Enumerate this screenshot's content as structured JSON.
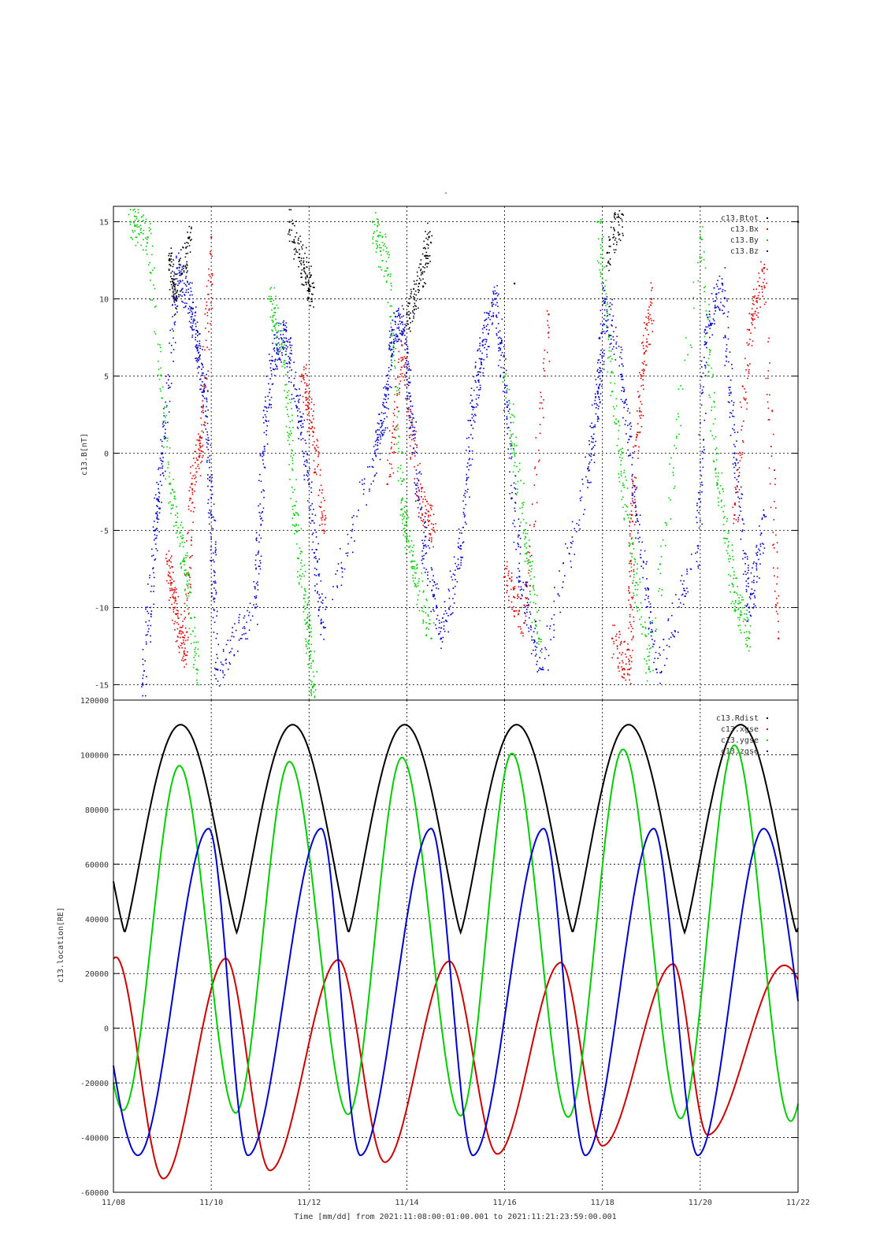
{
  "figure": {
    "top_marker": "-",
    "xlabel": "Time [mm/dd]  from 2021:11:08:00:01:00.001  to  2021:11:21:23:59:00.001",
    "x_ticks": [
      "11/08",
      "11/10",
      "11/12",
      "11/14",
      "11/16",
      "11/18",
      "11/20",
      "11/22"
    ]
  },
  "chart_data": [
    {
      "type": "scatter",
      "title": "",
      "ylabel": "c13.B[nT]",
      "xlim": [
        0,
        14
      ],
      "ylim": [
        -16,
        16
      ],
      "y_ticks": [
        "15",
        "10",
        "5",
        "0",
        "-5",
        "-10",
        "-15"
      ],
      "x_units": "days since 2021-11-08 00:00",
      "legend": {
        "placement": "top-right",
        "entries": [
          "c13.Btot",
          "c13.Bx",
          "c13.By",
          "c13.Bz"
        ]
      },
      "grid": true,
      "series": [
        {
          "name": "c13.Btot",
          "color": "#000000",
          "values": [
            [
              1.15,
              12.5
            ],
            [
              1.25,
              10.0
            ],
            [
              1.55,
              14.0
            ],
            [
              3.6,
              15.0
            ],
            [
              3.9,
              12.0
            ],
            [
              4.05,
              10.0
            ],
            [
              6.0,
              9.0
            ],
            [
              6.25,
              11.0
            ],
            [
              6.45,
              14.0
            ],
            [
              8.2,
              11.0
            ],
            [
              10.1,
              13.0
            ],
            [
              10.4,
              15.5
            ],
            [
              14.0,
              15.0
            ]
          ]
        },
        {
          "name": "c13.Bx",
          "color": "#dd0000",
          "values": [
            [
              1.1,
              -7.0
            ],
            [
              1.25,
              -10.0
            ],
            [
              1.45,
              -13.0
            ],
            [
              1.6,
              -2.0
            ],
            [
              1.8,
              1.0
            ],
            [
              2.0,
              14.0
            ],
            [
              3.85,
              5.0
            ],
            [
              4.05,
              2.0
            ],
            [
              4.3,
              -5.0
            ],
            [
              5.6,
              -2.0
            ],
            [
              5.9,
              7.0
            ],
            [
              6.25,
              -3.0
            ],
            [
              6.55,
              -5.0
            ],
            [
              8.0,
              -8.0
            ],
            [
              8.4,
              -11.0
            ],
            [
              8.9,
              9.0
            ],
            [
              10.2,
              -12.0
            ],
            [
              10.55,
              -14.0
            ],
            [
              10.6,
              -4.0
            ],
            [
              10.8,
              5.0
            ],
            [
              11.0,
              10.0
            ],
            [
              12.7,
              -4.0
            ],
            [
              13.0,
              8.0
            ],
            [
              13.3,
              12.0
            ],
            [
              13.6,
              -12.0
            ]
          ]
        },
        {
          "name": "c13.By",
          "color": "#00cc00",
          "values": [
            [
              0.35,
              15.0
            ],
            [
              0.7,
              14.0
            ],
            [
              1.15,
              -2.0
            ],
            [
              1.45,
              -7.0
            ],
            [
              1.7,
              -14.0
            ],
            [
              3.2,
              10.0
            ],
            [
              3.5,
              6.0
            ],
            [
              3.7,
              -4.0
            ],
            [
              3.95,
              -11.0
            ],
            [
              4.1,
              -15.0
            ],
            [
              5.3,
              15.0
            ],
            [
              5.6,
              12.0
            ],
            [
              5.9,
              -3.0
            ],
            [
              6.1,
              -7.0
            ],
            [
              6.5,
              -12.0
            ],
            [
              8.0,
              5.0
            ],
            [
              8.4,
              -5.0
            ],
            [
              8.7,
              -12.0
            ],
            [
              9.9,
              15.0
            ],
            [
              10.2,
              4.0
            ],
            [
              10.55,
              -6.0
            ],
            [
              10.95,
              -14.0
            ],
            [
              12.0,
              14.0
            ],
            [
              12.35,
              -2.0
            ],
            [
              12.7,
              -9.0
            ],
            [
              13.0,
              -12.0
            ]
          ]
        },
        {
          "name": "c13.Bz",
          "color": "#0000cc",
          "values": [
            [
              0.6,
              -15.0
            ],
            [
              0.85,
              -5.0
            ],
            [
              1.0,
              0.0
            ],
            [
              1.3,
              12.0
            ],
            [
              1.55,
              10.0
            ],
            [
              1.7,
              7.0
            ],
            [
              1.85,
              4.0
            ],
            [
              2.0,
              -4.0
            ],
            [
              2.1,
              -14.0
            ],
            [
              2.9,
              -10.0
            ],
            [
              3.05,
              0.0
            ],
            [
              3.25,
              6.0
            ],
            [
              3.5,
              8.0
            ],
            [
              3.75,
              3.0
            ],
            [
              4.0,
              -2.0
            ],
            [
              4.25,
              -11.0
            ],
            [
              5.35,
              0.0
            ],
            [
              5.55,
              3.0
            ],
            [
              5.7,
              8.0
            ],
            [
              5.9,
              8.5
            ],
            [
              6.1,
              2.0
            ],
            [
              6.35,
              -6.0
            ],
            [
              6.7,
              -12.0
            ],
            [
              7.1,
              -6.0
            ],
            [
              7.35,
              3.0
            ],
            [
              7.55,
              7.0
            ],
            [
              7.8,
              10.0
            ],
            [
              8.05,
              3.0
            ],
            [
              8.3,
              -8.0
            ],
            [
              8.75,
              -14.0
            ],
            [
              9.7,
              -1.0
            ],
            [
              9.9,
              4.0
            ],
            [
              10.05,
              10.0
            ],
            [
              10.4,
              5.0
            ],
            [
              10.7,
              -4.0
            ],
            [
              11.1,
              -14.0
            ],
            [
              11.95,
              -6.0
            ],
            [
              12.1,
              8.0
            ],
            [
              12.45,
              11.0
            ],
            [
              12.7,
              0.0
            ],
            [
              13.0,
              -10.0
            ],
            [
              13.3,
              -4.0
            ]
          ]
        }
      ]
    },
    {
      "type": "line",
      "title": "",
      "ylabel": "c13.location[RE]",
      "xlim": [
        0,
        14
      ],
      "ylim": [
        -60000,
        120000
      ],
      "y_ticks": [
        "120000",
        "100000",
        "80000",
        "60000",
        "40000",
        "20000",
        "0",
        "-20000",
        "-40000",
        "-60000"
      ],
      "legend": {
        "placement": "top-right",
        "entries": [
          "c13.Rdist",
          "c13.xgse",
          "c13.ygse",
          "c13.zgse"
        ]
      },
      "grid": true,
      "orbit_period_days": 2.29,
      "series": [
        {
          "name": "c13.Rdist",
          "color": "#000000",
          "min": 35000,
          "max": 111000,
          "first_min_day": 0.23
        },
        {
          "name": "c13.xgse",
          "color": "#cc0000",
          "peaks": [
            [
              0.05,
              26000
            ],
            [
              2.3,
              25500
            ],
            [
              4.6,
              25000
            ],
            [
              6.87,
              24500
            ],
            [
              9.15,
              24000
            ],
            [
              11.45,
              23500
            ],
            [
              13.72,
              23000
            ]
          ],
          "troughs": [
            [
              1.02,
              -55000
            ],
            [
              3.2,
              -52000
            ],
            [
              5.55,
              -49000
            ],
            [
              7.85,
              -46000
            ],
            [
              10.0,
              -43000
            ],
            [
              12.15,
              -39000
            ]
          ]
        },
        {
          "name": "c13.ygse",
          "color": "#00cc00",
          "peaks": [
            [
              1.35,
              96000
            ],
            [
              3.6,
              97500
            ],
            [
              5.9,
              99000
            ],
            [
              8.15,
              100500
            ],
            [
              10.42,
              102000
            ],
            [
              12.7,
              103500
            ]
          ],
          "troughs": [
            [
              0.2,
              -30000
            ],
            [
              2.5,
              -31000
            ],
            [
              4.8,
              -31500
            ],
            [
              7.1,
              -32000
            ],
            [
              9.3,
              -32500
            ],
            [
              11.6,
              -33000
            ],
            [
              13.85,
              -34000
            ]
          ]
        },
        {
          "name": "c13.zgse",
          "color": "#0000cc",
          "peaks": [
            [
              1.95,
              73000
            ],
            [
              4.25,
              73000
            ],
            [
              6.5,
              73000
            ],
            [
              8.8,
              73000
            ],
            [
              11.05,
              73000
            ],
            [
              13.3,
              73000
            ]
          ],
          "troughs": [
            [
              0.5,
              -46500
            ],
            [
              2.75,
              -46500
            ],
            [
              5.05,
              -46500
            ],
            [
              7.35,
              -46500
            ],
            [
              9.65,
              -46500
            ],
            [
              11.95,
              -46500
            ]
          ]
        }
      ]
    }
  ]
}
